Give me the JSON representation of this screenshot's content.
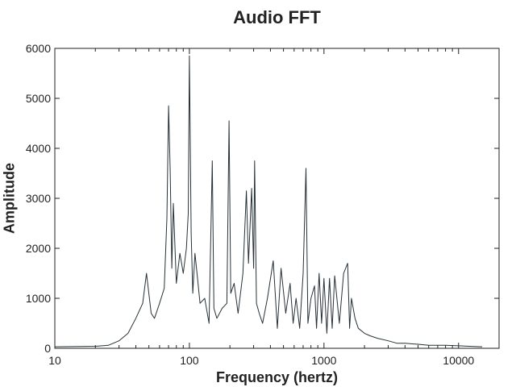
{
  "chart_data": {
    "type": "line",
    "title": "Audio FFT",
    "xlabel": "Frequency (hertz)",
    "ylabel": "Amplitude",
    "x_scale": "log",
    "xlim": [
      10,
      20000
    ],
    "ylim": [
      0,
      6000
    ],
    "x_ticks": [
      {
        "value": 10,
        "label": "10"
      },
      {
        "value": 100,
        "label": "100"
      },
      {
        "value": 1000,
        "label": "1000"
      },
      {
        "value": 10000,
        "label": "10000"
      }
    ],
    "y_ticks": [
      {
        "value": 0,
        "label": "0"
      },
      {
        "value": 1000,
        "label": "1000"
      },
      {
        "value": 2000,
        "label": "2000"
      },
      {
        "value": 3000,
        "label": "3000"
      },
      {
        "value": 4000,
        "label": "4000"
      },
      {
        "value": 5000,
        "label": "5000"
      },
      {
        "value": 6000,
        "label": "6000"
      }
    ],
    "grid": false,
    "line_color": "#263238",
    "series": [
      {
        "name": "",
        "x": [
          10,
          20,
          25,
          30,
          35,
          40,
          45,
          48,
          52,
          55,
          60,
          65,
          68,
          70,
          72,
          74,
          76,
          80,
          85,
          90,
          95,
          98,
          100,
          103,
          106,
          110,
          115,
          120,
          130,
          140,
          148,
          152,
          160,
          175,
          190,
          197,
          203,
          215,
          230,
          250,
          265,
          275,
          290,
          300,
          305,
          315,
          330,
          340,
          350,
          380,
          420,
          450,
          480,
          520,
          560,
          590,
          620,
          660,
          700,
          735,
          760,
          800,
          850,
          880,
          920,
          960,
          1000,
          1050,
          1100,
          1150,
          1200,
          1300,
          1400,
          1500,
          1550,
          1600,
          1700,
          1800,
          2000,
          2200,
          2500,
          3000,
          3500,
          4000,
          5000,
          6000,
          8000,
          10000,
          12000,
          15000
        ],
        "y": [
          30,
          40,
          60,
          150,
          300,
          600,
          900,
          1500,
          700,
          600,
          900,
          1200,
          2600,
          4850,
          3550,
          1600,
          2900,
          1300,
          1900,
          1500,
          2000,
          2700,
          5850,
          2300,
          1100,
          1900,
          1400,
          900,
          1000,
          500,
          3750,
          800,
          600,
          800,
          900,
          4550,
          1100,
          1300,
          700,
          1500,
          3150,
          1700,
          3200,
          1600,
          3750,
          900,
          700,
          600,
          500,
          1000,
          1750,
          400,
          1600,
          700,
          1300,
          500,
          1000,
          400,
          1500,
          3600,
          500,
          1000,
          1250,
          400,
          1500,
          500,
          1400,
          300,
          1400,
          400,
          1450,
          500,
          1500,
          1700,
          400,
          1000,
          600,
          400,
          300,
          250,
          200,
          150,
          100,
          100,
          80,
          60,
          60,
          50,
          40,
          30
        ]
      }
    ]
  }
}
